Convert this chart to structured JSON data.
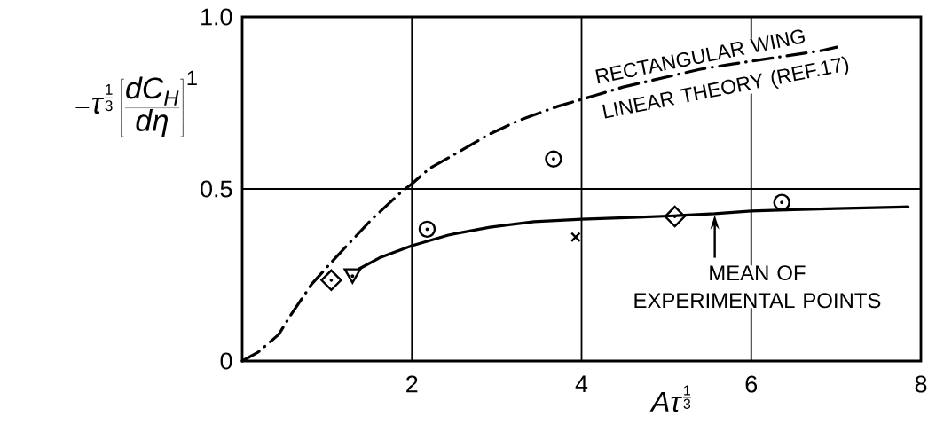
{
  "chart_data": {
    "type": "line",
    "xlabel": "A\\tau^{\\frac{1}{3}}",
    "ylabel": "-\\tau^{\\frac{1}{3}}\\left[\\frac{dC_{H}}{d\\eta}\\right]^{1}",
    "xlim": [
      0,
      8
    ],
    "ylim": [
      0,
      1.0
    ],
    "xticks": [
      2,
      4,
      6,
      8
    ],
    "yticks": [
      0,
      0.5,
      {
        "value": 1.0,
        "label": "1.0"
      }
    ],
    "grid": true,
    "series": [
      {
        "name": "RECTANGULAR WING LINEAR THEORY (REF.17)",
        "line_style": "dashdot",
        "color": "#000000",
        "x": [
          0,
          0.19,
          0.43,
          0.56,
          0.82,
          1.1,
          1.52,
          1.87,
          2.0,
          2.21,
          2.5,
          2.92,
          3.27,
          3.72,
          4.18,
          4.49,
          5.4,
          5.78,
          6.83,
          7.01
        ],
        "values": [
          0,
          0.026,
          0.077,
          0.129,
          0.224,
          0.3,
          0.41,
          0.49,
          0.515,
          0.56,
          0.6,
          0.66,
          0.7,
          0.74,
          0.773,
          0.796,
          0.848,
          0.863,
          0.902,
          0.912
        ]
      },
      {
        "name": "MEAN OF EXPERIMENTAL POINTS",
        "line_style": "solid",
        "color": "#000000",
        "x": [
          1.38,
          1.62,
          2.0,
          2.43,
          2.92,
          3.44,
          4.0,
          4.67,
          5.09,
          5.57,
          6.0,
          6.5,
          7.0,
          7.85
        ],
        "values": [
          0.268,
          0.3,
          0.335,
          0.366,
          0.389,
          0.405,
          0.412,
          0.418,
          0.422,
          0.428,
          0.436,
          0.44,
          0.443,
          0.448
        ]
      },
      {
        "type": "scatter",
        "marker": "diamond",
        "color": "#000000",
        "x": [
          1.05,
          5.1
        ],
        "values": [
          0.235,
          0.42
        ]
      },
      {
        "type": "scatter",
        "marker": "triangle",
        "color": "#000000",
        "x": [
          1.3
        ],
        "values": [
          0.247
        ]
      },
      {
        "type": "scatter",
        "marker": "circle",
        "color": "#000000",
        "x": [
          2.18,
          3.67,
          6.36
        ],
        "values": [
          0.383,
          0.587,
          0.461
        ]
      },
      {
        "type": "scatter",
        "marker": "cross",
        "color": "#000000",
        "x": [
          3.93
        ],
        "values": [
          0.36
        ]
      }
    ]
  }
}
